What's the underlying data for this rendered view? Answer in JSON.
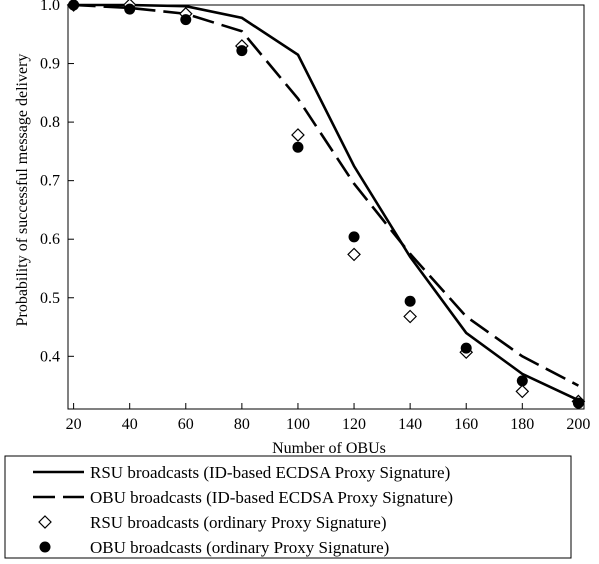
{
  "chart_data": {
    "type": "line",
    "title": "",
    "xlabel": "Number of OBUs",
    "ylabel": "Probability of successful message delivery",
    "x": [
      20,
      40,
      60,
      80,
      100,
      120,
      140,
      160,
      180,
      200
    ],
    "xlim": [
      18,
      202
    ],
    "ylim": [
      0.31,
      1.0
    ],
    "xticks": [
      "20",
      "40",
      "60",
      "80",
      "100",
      "120",
      "140",
      "160",
      "180",
      "200"
    ],
    "yticks": [
      "0.4",
      "0.5",
      "0.6",
      "0.7",
      "0.8",
      "0.9",
      "1.0"
    ],
    "ytick_values": [
      0.4,
      0.5,
      0.6,
      0.7,
      0.8,
      0.9,
      1.0
    ],
    "grid": false,
    "legend_position": "bottom",
    "series": [
      {
        "name": "RSU broadcasts (ID-based ECDSA Proxy Signature)",
        "style": "solid-line",
        "values": [
          1.0,
          1.0,
          0.998,
          0.978,
          0.915,
          0.725,
          0.57,
          0.44,
          0.37,
          0.325
        ]
      },
      {
        "name": "OBU broadcasts (ID-based ECDSA Proxy Signature)",
        "style": "dashed-line",
        "values": [
          1.0,
          0.995,
          0.985,
          0.955,
          0.84,
          0.695,
          0.575,
          0.468,
          0.4,
          0.35
        ]
      },
      {
        "name": "RSU broadcasts (ordinary Proxy Signature)",
        "style": "open-diamond",
        "values": [
          1.0,
          1.0,
          0.985,
          0.93,
          0.778,
          0.574,
          0.468,
          0.407,
          0.34,
          0.323
        ]
      },
      {
        "name": "OBU broadcasts (ordinary Proxy Signature)",
        "style": "filled-circle",
        "values": [
          1.0,
          0.993,
          0.975,
          0.922,
          0.757,
          0.604,
          0.494,
          0.414,
          0.358,
          0.32
        ]
      }
    ]
  }
}
